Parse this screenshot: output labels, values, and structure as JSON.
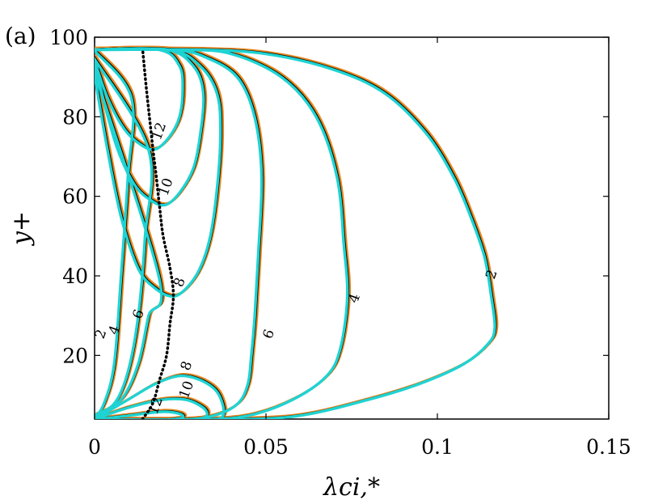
{
  "panel_label": "(a)",
  "colors": {
    "primary_contour": "#000000",
    "secondary_contour": "#e8861e",
    "tertiary_contour": "#1fd3d3",
    "peak_trace": "#000000"
  },
  "chart_data": {
    "type": "line",
    "subtype": "contour",
    "xlabel": "λci,*",
    "ylabel": "y+",
    "xlim": [
      0,
      0.15
    ],
    "ylim": [
      4,
      100
    ],
    "x_ticks": [
      0,
      0.05,
      0.1,
      0.15
    ],
    "x_tick_labels": [
      "0",
      "0.05",
      "0.1",
      "0.15"
    ],
    "y_ticks": [
      20,
      40,
      60,
      80,
      100
    ],
    "y_tick_labels": [
      "20",
      "40",
      "60",
      "80",
      "100"
    ],
    "grid": false,
    "contour_levels": [
      "2",
      "4",
      "6",
      "8",
      "10",
      "12"
    ],
    "peak_trace": {
      "style": "dotted",
      "points": [
        [
          0.014,
          4
        ],
        [
          0.017,
          8
        ],
        [
          0.019,
          14
        ],
        [
          0.021,
          20
        ],
        [
          0.022,
          28
        ],
        [
          0.023,
          35
        ],
        [
          0.022,
          42
        ],
        [
          0.02,
          50
        ],
        [
          0.019,
          57
        ],
        [
          0.018,
          65
        ],
        [
          0.017,
          72
        ],
        [
          0.016,
          80
        ],
        [
          0.015,
          88
        ],
        [
          0.014,
          97
        ]
      ]
    },
    "upper_contours": [
      {
        "level": "2",
        "points": [
          [
            0.0,
            97
          ],
          [
            0.03,
            97
          ],
          [
            0.05,
            96
          ],
          [
            0.07,
            92
          ],
          [
            0.085,
            86
          ],
          [
            0.097,
            76
          ],
          [
            0.105,
            65
          ],
          [
            0.11,
            55
          ],
          [
            0.114,
            45
          ],
          [
            0.116,
            35
          ],
          [
            0.117,
            27
          ],
          [
            0.115,
            23
          ],
          [
            0.108,
            18
          ],
          [
            0.095,
            13
          ],
          [
            0.08,
            9
          ],
          [
            0.06,
            5
          ],
          [
            0.04,
            4
          ],
          [
            0.02,
            4
          ],
          [
            0.0,
            4
          ]
        ]
      },
      {
        "level": "4",
        "points": [
          [
            0.0,
            97
          ],
          [
            0.025,
            97
          ],
          [
            0.04,
            96
          ],
          [
            0.055,
            90
          ],
          [
            0.065,
            80
          ],
          [
            0.071,
            65
          ],
          [
            0.073,
            48
          ],
          [
            0.074,
            35
          ],
          [
            0.072,
            22
          ],
          [
            0.068,
            15
          ],
          [
            0.058,
            9
          ],
          [
            0.045,
            5
          ],
          [
            0.03,
            4
          ],
          [
            0.0,
            4
          ]
        ]
      },
      {
        "level": "6",
        "points": [
          [
            0.0,
            97
          ],
          [
            0.023,
            97
          ],
          [
            0.033,
            95
          ],
          [
            0.042,
            90
          ],
          [
            0.047,
            80
          ],
          [
            0.049,
            65
          ],
          [
            0.048,
            45
          ],
          [
            0.047,
            30
          ],
          [
            0.046,
            20
          ],
          [
            0.045,
            13
          ],
          [
            0.042,
            8
          ],
          [
            0.035,
            5
          ],
          [
            0.025,
            4
          ],
          [
            0.0,
            4
          ]
        ]
      },
      {
        "level": "8",
        "points": [
          [
            0.0,
            97
          ],
          [
            0.022,
            97
          ],
          [
            0.031,
            93
          ],
          [
            0.036,
            86
          ],
          [
            0.037,
            76
          ],
          [
            0.036,
            62
          ],
          [
            0.034,
            50
          ],
          [
            0.031,
            42
          ],
          [
            0.027,
            37
          ],
          [
            0.023,
            35
          ],
          [
            0.018,
            37
          ],
          [
            0.013,
            42
          ],
          [
            0.008,
            55
          ],
          [
            0.004,
            72
          ],
          [
            0.0,
            92
          ]
        ]
      },
      {
        "level": "10",
        "points": [
          [
            0.0,
            97
          ],
          [
            0.021,
            97
          ],
          [
            0.029,
            93
          ],
          [
            0.032,
            86
          ],
          [
            0.031,
            75
          ],
          [
            0.029,
            67
          ],
          [
            0.025,
            61
          ],
          [
            0.021,
            58
          ],
          [
            0.017,
            59
          ],
          [
            0.012,
            63
          ],
          [
            0.007,
            72
          ],
          [
            0.003,
            84
          ],
          [
            0.0,
            95
          ]
        ]
      },
      {
        "level": "12",
        "points": [
          [
            0.0,
            97
          ],
          [
            0.019,
            97
          ],
          [
            0.025,
            93
          ],
          [
            0.026,
            87
          ],
          [
            0.025,
            80
          ],
          [
            0.022,
            75
          ],
          [
            0.018,
            72
          ],
          [
            0.014,
            73
          ],
          [
            0.009,
            77
          ],
          [
            0.004,
            85
          ],
          [
            0.0,
            95
          ]
        ]
      }
    ],
    "lower_contours": [
      {
        "level": "2",
        "points": [
          [
            0.0,
            4
          ],
          [
            0.003,
            8
          ],
          [
            0.006,
            18
          ],
          [
            0.008,
            40
          ],
          [
            0.01,
            65
          ],
          [
            0.011,
            85
          ],
          [
            0.0,
            97
          ]
        ]
      },
      {
        "level": "4",
        "points": [
          [
            0.0,
            5
          ],
          [
            0.006,
            8
          ],
          [
            0.01,
            16
          ],
          [
            0.013,
            30
          ],
          [
            0.015,
            50
          ],
          [
            0.016,
            72
          ],
          [
            0.0,
            95
          ]
        ]
      },
      {
        "level": "6",
        "points": [
          [
            0.0,
            5
          ],
          [
            0.008,
            9
          ],
          [
            0.013,
            18
          ],
          [
            0.016,
            30
          ],
          [
            0.019,
            40
          ],
          [
            0.0,
            92
          ]
        ]
      },
      {
        "level": "8",
        "points": [
          [
            0.0,
            4
          ],
          [
            0.01,
            9
          ],
          [
            0.018,
            13
          ],
          [
            0.025,
            15
          ],
          [
            0.031,
            14
          ],
          [
            0.036,
            11
          ],
          [
            0.038,
            6
          ],
          [
            0.036,
            4
          ],
          [
            0.03,
            4
          ]
        ]
      },
      {
        "level": "10",
        "points": [
          [
            0.0,
            4
          ],
          [
            0.01,
            7
          ],
          [
            0.02,
            9
          ],
          [
            0.027,
            9
          ],
          [
            0.032,
            7
          ],
          [
            0.033,
            5
          ],
          [
            0.03,
            4
          ]
        ]
      },
      {
        "level": "12",
        "points": [
          [
            0.0,
            4
          ],
          [
            0.01,
            5
          ],
          [
            0.02,
            6
          ],
          [
            0.025,
            5.5
          ],
          [
            0.026,
            4.5
          ],
          [
            0.022,
            4
          ]
        ]
      }
    ],
    "contour_label_positions": [
      {
        "text": "2",
        "x": 0.117,
        "y": 40
      },
      {
        "text": "4",
        "x": 0.077,
        "y": 34
      },
      {
        "text": "6",
        "x": 0.052,
        "y": 25
      },
      {
        "text": "8",
        "x": 0.026,
        "y": 38
      },
      {
        "text": "10",
        "x": 0.022,
        "y": 62
      },
      {
        "text": "12",
        "x": 0.02,
        "y": 76
      },
      {
        "text": "2",
        "x": 0.003,
        "y": 25
      },
      {
        "text": "4",
        "x": 0.007,
        "y": 26
      },
      {
        "text": "6",
        "x": 0.014,
        "y": 30
      },
      {
        "text": "8",
        "x": 0.028,
        "y": 17
      },
      {
        "text": "10",
        "x": 0.028,
        "y": 11
      },
      {
        "text": "12",
        "x": 0.019,
        "y": 7
      }
    ]
  }
}
